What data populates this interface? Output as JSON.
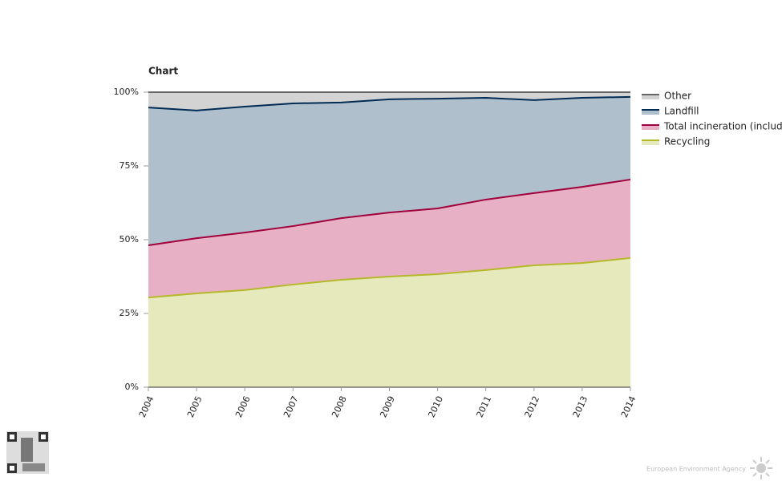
{
  "chart_data": {
    "type": "stacked_area",
    "title": "Chart",
    "categories": [
      "2004",
      "2005",
      "2006",
      "2007",
      "2008",
      "2009",
      "2010",
      "2011",
      "2012",
      "2013",
      "2014"
    ],
    "series": [
      {
        "name": "Recycling",
        "color": "#b5b828",
        "fill": "#e5e9bb",
        "values": [
          30.4,
          31.8,
          32.9,
          34.8,
          36.4,
          37.5,
          38.3,
          39.7,
          41.3,
          42.1,
          43.8
        ]
      },
      {
        "name": "Total incineration (includ",
        "color": "#a0003c",
        "fill": "#e8b0c4",
        "values": [
          17.7,
          18.7,
          19.5,
          19.8,
          20.9,
          21.7,
          22.3,
          23.9,
          24.5,
          25.8,
          26.6
        ]
      },
      {
        "name": "Landfill",
        "color": "#002b55",
        "fill": "#b0bfcc",
        "values": [
          46.7,
          43.3,
          42.7,
          41.6,
          39.2,
          38.4,
          37.2,
          34.5,
          31.5,
          30.2,
          28.0
        ]
      },
      {
        "name": "Other",
        "color": "#666666",
        "fill": "#d3d3d3",
        "values": [
          5.2,
          6.2,
          4.9,
          3.8,
          3.5,
          2.4,
          2.2,
          1.9,
          2.7,
          1.9,
          1.6
        ]
      }
    ],
    "ylim": [
      0,
      100
    ],
    "yticks": [
      {
        "value": 0,
        "label": "0%"
      },
      {
        "value": 25,
        "label": "25%"
      },
      {
        "value": 50,
        "label": "50%"
      },
      {
        "value": 75,
        "label": "75%"
      },
      {
        "value": 100,
        "label": "100%"
      }
    ],
    "footer": "European Environment Agency"
  }
}
